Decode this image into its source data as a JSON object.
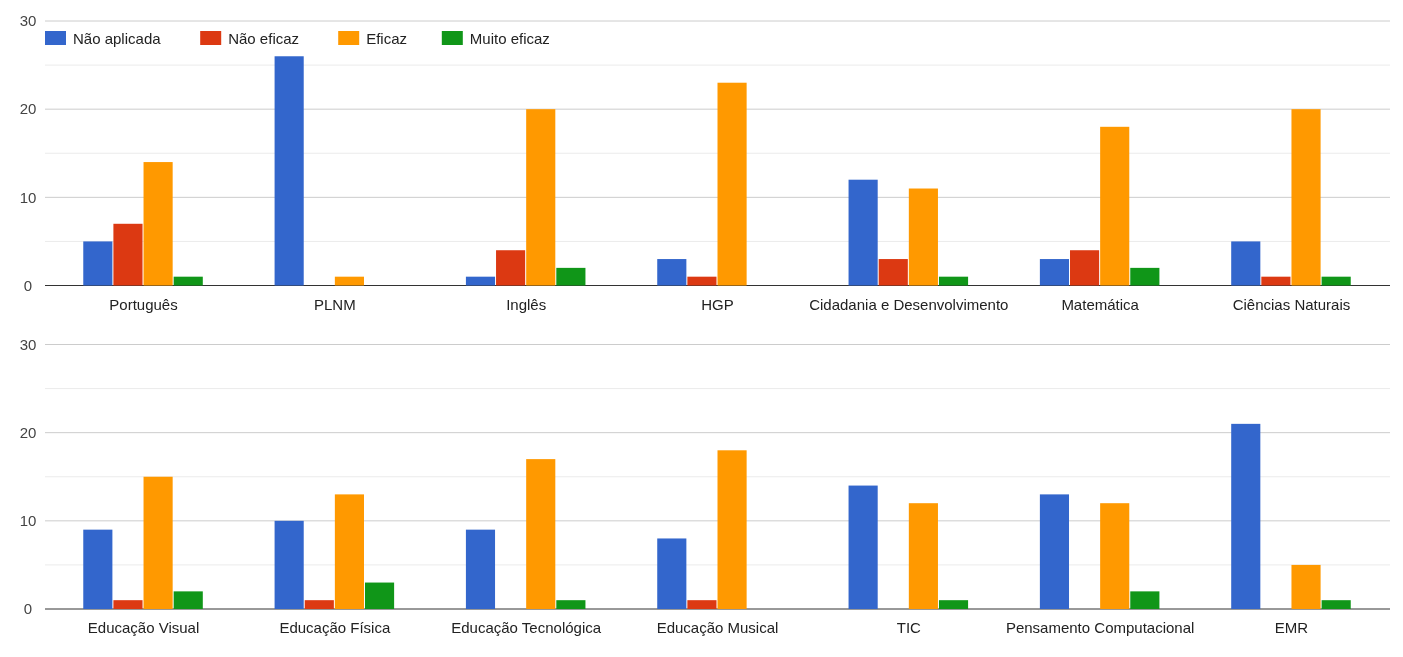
{
  "chart_data": [
    {
      "type": "bar",
      "categories": [
        "Português",
        "PLNM",
        "Inglês",
        "HGP",
        "Cidadania e Desenvolvimento",
        "Matemática",
        "Ciências Naturais"
      ],
      "series": [
        {
          "name": "Não aplicada",
          "color": "#3366cc",
          "values": [
            5,
            26,
            1,
            3,
            12,
            3,
            5
          ]
        },
        {
          "name": "Não eficaz",
          "color": "#dc3912",
          "values": [
            7,
            0,
            4,
            1,
            3,
            4,
            1
          ]
        },
        {
          "name": "Eficaz",
          "color": "#ff9900",
          "values": [
            14,
            1,
            20,
            23,
            11,
            18,
            20
          ]
        },
        {
          "name": "Muito eficaz",
          "color": "#109618",
          "values": [
            1,
            0,
            2,
            0,
            1,
            2,
            1
          ]
        }
      ],
      "ylim": [
        0,
        30
      ],
      "yticks": [
        0,
        {
          "value": 5,
          "label": null
        },
        10,
        {
          "value": 15,
          "label": null
        },
        20,
        {
          "value": 25,
          "label": null
        },
        30
      ],
      "grid": "y",
      "legend": "top left"
    },
    {
      "type": "bar",
      "categories": [
        "Educação Visual",
        "Educação Física",
        "Educação Tecnológica",
        "Educação Musical",
        "TIC",
        "Pensamento Computacional",
        "EMR"
      ],
      "series": [
        {
          "color": "#3366cc",
          "values": [
            9,
            10,
            9,
            8,
            14,
            13,
            21
          ]
        },
        {
          "color": "#dc3912",
          "values": [
            1,
            1,
            0,
            1,
            0,
            0,
            0
          ]
        },
        {
          "color": "#ff9900",
          "values": [
            15,
            13,
            17,
            18,
            12,
            12,
            5
          ]
        },
        {
          "color": "#109618",
          "values": [
            2,
            3,
            1,
            0,
            1,
            2,
            1
          ]
        }
      ],
      "ylim": [
        0,
        30
      ],
      "yticks": [
        0,
        {
          "value": 5,
          "label": null
        },
        10,
        {
          "value": 15,
          "label": null
        },
        20,
        {
          "value": 25,
          "label": null
        },
        30
      ],
      "grid": "y",
      "legend": false
    }
  ]
}
